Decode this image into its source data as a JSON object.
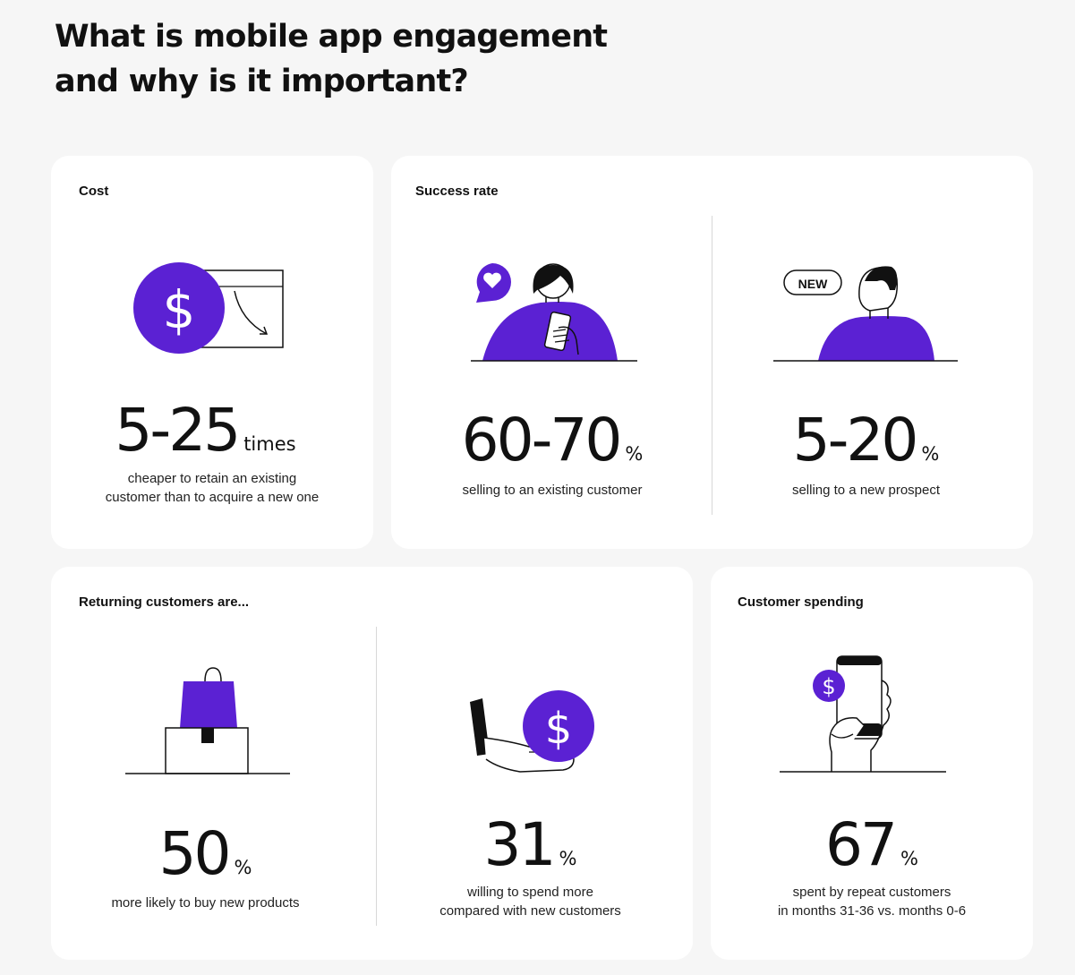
{
  "heading": {
    "line1": "What is mobile app engagement",
    "line2": "and why is it important?"
  },
  "cost": {
    "title": "Cost",
    "value": "5-25",
    "unit": "times",
    "desc_line1": "cheaper to retain an existing",
    "desc_line2": "customer than to acquire a new one"
  },
  "success": {
    "title": "Success rate",
    "existing": {
      "value": "60-70",
      "unit": "%",
      "desc": "selling to an existing customer"
    },
    "prospect": {
      "value": "5-20",
      "unit": "%",
      "desc": "selling to a new prospect",
      "badge": "NEW"
    }
  },
  "returning": {
    "title": "Returning customers are...",
    "buy": {
      "value": "50",
      "unit": "%",
      "desc": "more likely to buy new products"
    },
    "spend": {
      "value": "31",
      "unit": "%",
      "desc_line1": "willing to spend more",
      "desc_line2": "compared with new customers"
    }
  },
  "spending": {
    "title": "Customer spending",
    "value": "67",
    "unit": "%",
    "desc_line1": "spent by repeat customers",
    "desc_line2": "in months 31-36 vs. months 0-6"
  },
  "colors": {
    "accent": "#5b21d3",
    "ink": "#111111",
    "card": "#ffffff",
    "background": "#f6f6f6"
  }
}
